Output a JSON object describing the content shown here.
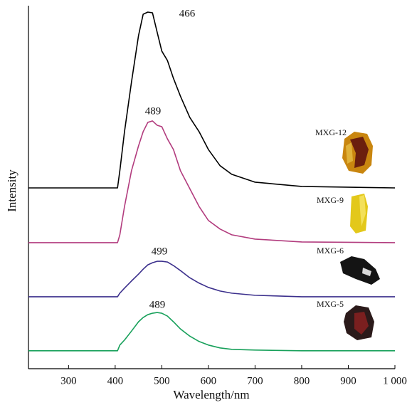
{
  "chart_data": {
    "type": "line",
    "x_label": "Wavelength/nm",
    "y_label": "Intensity",
    "x": [
      214,
      405,
      410,
      420,
      435,
      450,
      460,
      470,
      480,
      490,
      500,
      512,
      525,
      540,
      560,
      580,
      600,
      625,
      650,
      700,
      800,
      1000
    ],
    "series": [
      {
        "name": "MXG-12",
        "color": "#000000",
        "peak": 466,
        "values": [
          50.5,
          50.5,
          55.3,
          66.2,
          80.1,
          93.0,
          99.0,
          99.6,
          99.4,
          94.0,
          88.7,
          86.1,
          81.1,
          76.1,
          70.2,
          66.2,
          61.2,
          56.7,
          54.3,
          52.1,
          50.9,
          50.5
        ]
      },
      {
        "name": "MXG-9",
        "color": "#b23c7e",
        "peak": 489,
        "values": [
          35.2,
          35.2,
          37.4,
          45.3,
          55.3,
          62.2,
          66.2,
          68.8,
          69.2,
          68.0,
          67.6,
          64.2,
          61.2,
          55.3,
          50.3,
          45.3,
          41.4,
          39.0,
          37.4,
          36.2,
          35.4,
          35.2
        ]
      },
      {
        "name": "MXG-6",
        "color": "#3b2f8c",
        "peak": 499,
        "values": [
          20.1,
          20.1,
          21.1,
          22.5,
          24.5,
          26.4,
          27.8,
          29.0,
          29.6,
          30.0,
          30.0,
          29.8,
          28.8,
          27.4,
          25.4,
          23.9,
          22.7,
          21.7,
          21.1,
          20.5,
          20.1,
          20.1
        ]
      },
      {
        "name": "MXG-5",
        "color": "#17a05a",
        "peak": 489,
        "values": [
          5.0,
          5.0,
          6.6,
          8.0,
          10.5,
          13.1,
          14.3,
          15.1,
          15.5,
          15.7,
          15.5,
          14.7,
          13.1,
          11.1,
          9.1,
          7.6,
          6.6,
          5.8,
          5.4,
          5.2,
          5.0,
          5.0
        ]
      }
    ],
    "xlim": [
      214,
      1000
    ],
    "xticks": [
      300,
      400,
      500,
      600,
      700,
      800,
      900,
      {
        "value": 1000,
        "label": "1 000"
      }
    ],
    "ylim": [
      0,
      100
    ]
  }
}
